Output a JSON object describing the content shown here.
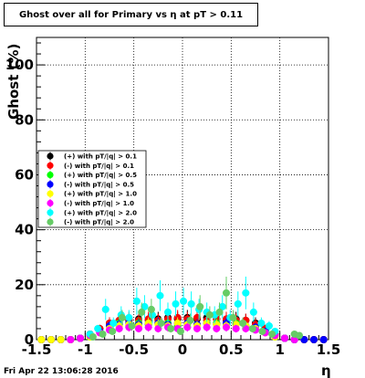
{
  "chart_data": {
    "type": "scatter",
    "title": "Ghost over all for Primary vs   η at pT > 0.11",
    "xlabel": "η",
    "ylabel": "Ghost (%)",
    "xlim": [
      -1.5,
      1.5
    ],
    "ylim": [
      0,
      110
    ],
    "x_ticks": [
      "-1.5",
      "-1",
      "-0.5",
      "0",
      "0.5",
      "1",
      "1.5"
    ],
    "x_tick_values": [
      -1.5,
      -1,
      -0.5,
      0,
      0.5,
      1,
      1.5
    ],
    "y_ticks": [
      "0",
      "20",
      "40",
      "60",
      "80",
      "100"
    ],
    "y_tick_values": [
      0,
      20,
      40,
      60,
      80,
      100
    ],
    "grid": true,
    "legend_position": "left-middle",
    "series": [
      {
        "name": "(+) with pT/|q| > 0.1",
        "color": "#000000",
        "x": [
          -1.45,
          -1.35,
          -1.25,
          -1.15,
          -1.05,
          -0.95,
          -0.85,
          -0.75,
          -0.65,
          -0.55,
          -0.45,
          -0.35,
          -0.25,
          -0.15,
          -0.05,
          0.05,
          0.15,
          0.25,
          0.35,
          0.45,
          0.55,
          0.65,
          0.75,
          0.85,
          0.95,
          1.05,
          1.15,
          1.25,
          1.35,
          1.45
        ],
        "y": [
          0,
          0,
          0,
          0,
          0.5,
          2,
          4,
          6,
          7,
          7,
          7.5,
          7,
          7.5,
          8,
          7.5,
          8,
          7.5,
          8,
          7.5,
          7,
          7.5,
          7,
          6,
          4,
          2,
          0.5,
          0,
          0,
          0,
          0
        ]
      },
      {
        "name": "(-) with pT/|q| > 0.1",
        "color": "#ff0000",
        "x": [
          -1.45,
          -1.35,
          -1.25,
          -1.15,
          -1.05,
          -0.95,
          -0.85,
          -0.75,
          -0.65,
          -0.55,
          -0.45,
          -0.35,
          -0.25,
          -0.15,
          -0.05,
          0.05,
          0.15,
          0.25,
          0.35,
          0.45,
          0.55,
          0.65,
          0.75,
          0.85,
          0.95,
          1.05,
          1.15,
          1.25,
          1.35,
          1.45
        ],
        "y": [
          0,
          0,
          0,
          0,
          0.5,
          2,
          4,
          6,
          7,
          7.5,
          7,
          7.5,
          7,
          7.5,
          8,
          7.5,
          8,
          7,
          7.5,
          7.5,
          7,
          7,
          5.5,
          4,
          2,
          0.5,
          0,
          0,
          0,
          0
        ]
      },
      {
        "name": "(+) with pT/|q| > 0.5",
        "color": "#00ff00",
        "x": [
          -0.95,
          -0.85,
          -0.75,
          -0.65,
          -0.55,
          -0.45,
          -0.35,
          -0.25,
          -0.15,
          -0.05,
          0.05,
          0.15,
          0.25,
          0.35,
          0.45,
          0.55,
          0.65,
          0.75,
          0.85,
          0.95
        ],
        "y": [
          1,
          3,
          5,
          6,
          5,
          6,
          5.5,
          6,
          6,
          5,
          6,
          5.5,
          6,
          6,
          5.5,
          6,
          5,
          4,
          3,
          1
        ]
      },
      {
        "name": "(-) with pT/|q| > 0.5",
        "color": "#0000ff",
        "x": [
          -1.45,
          -1.35,
          -1.25,
          -1.15,
          -1.05,
          -0.95,
          -0.85,
          -0.75,
          -0.65,
          -0.55,
          -0.45,
          -0.35,
          -0.25,
          -0.15,
          -0.05,
          0.05,
          0.15,
          0.25,
          0.35,
          0.45,
          0.55,
          0.65,
          0.75,
          0.85,
          0.95,
          1.05,
          1.15,
          1.25,
          1.35,
          1.45
        ],
        "y": [
          0,
          0,
          0,
          0,
          0.5,
          1.5,
          3,
          5,
          5.5,
          6,
          5.5,
          6,
          6,
          5.5,
          6,
          6,
          5.5,
          6,
          5.5,
          6,
          5.5,
          5,
          4.5,
          3,
          1.5,
          0.5,
          0,
          0,
          0,
          0
        ]
      },
      {
        "name": "(+) with pT/|q| > 1.0",
        "color": "#ffff00",
        "x": [
          -1.45,
          -1.35,
          -1.25,
          -1.15,
          -0.95,
          -0.85,
          -0.75,
          -0.65,
          -0.55,
          -0.45,
          -0.35,
          -0.25,
          -0.15,
          -0.05,
          0.05,
          0.15,
          0.25,
          0.35,
          0.45,
          0.55,
          0.65,
          0.75,
          0.85,
          0.95
        ],
        "y": [
          0,
          0,
          0,
          0,
          1,
          2.5,
          4,
          5,
          5.5,
          5,
          6,
          5.5,
          5,
          6,
          5.5,
          5,
          6,
          5.5,
          5,
          5.5,
          5,
          4,
          2.5,
          1
        ]
      },
      {
        "name": "(-) with pT/|q| > 1.0",
        "color": "#ff00ff",
        "x": [
          -1.15,
          -1.05,
          -0.95,
          -0.85,
          -0.75,
          -0.65,
          -0.55,
          -0.45,
          -0.35,
          -0.25,
          -0.15,
          -0.05,
          0.05,
          0.15,
          0.25,
          0.35,
          0.45,
          0.55,
          0.65,
          0.75,
          0.85,
          0.95,
          1.05,
          1.15
        ],
        "y": [
          0,
          0.5,
          1.5,
          2.5,
          3.5,
          4,
          4.5,
          4,
          4.5,
          4,
          4.5,
          4,
          4.5,
          4,
          4.5,
          4,
          4.5,
          4,
          4,
          3.5,
          2.5,
          1.5,
          0.5,
          0
        ]
      },
      {
        "name": "(+) with pT/|q| > 2.0",
        "color": "#00ffff",
        "x": [
          -0.95,
          -0.87,
          -0.79,
          -0.71,
          -0.63,
          -0.55,
          -0.47,
          -0.39,
          -0.31,
          -0.23,
          -0.15,
          -0.07,
          0.01,
          0.09,
          0.17,
          0.25,
          0.33,
          0.41,
          0.49,
          0.57,
          0.65,
          0.73,
          0.81,
          0.89,
          0.95
        ],
        "y": [
          2,
          4,
          11,
          6,
          9,
          8,
          14,
          12,
          9,
          16,
          10,
          13,
          14,
          13,
          11,
          10,
          9,
          12,
          8,
          13,
          17,
          10,
          6,
          5,
          3
        ]
      },
      {
        "name": "(-) with pT/|q| > 2.0",
        "color": "#66cc66",
        "x": [
          -0.92,
          -0.82,
          -0.72,
          -0.62,
          -0.52,
          -0.42,
          -0.32,
          -0.22,
          -0.12,
          -0.02,
          0.08,
          0.18,
          0.28,
          0.38,
          0.45,
          0.52,
          0.62,
          0.72,
          0.82,
          0.92,
          1.15,
          1.2
        ],
        "y": [
          1,
          2,
          3,
          8,
          5,
          10,
          11,
          6,
          4,
          3,
          7,
          12,
          9,
          10,
          17,
          8,
          6,
          4,
          3,
          2,
          2,
          1.5
        ]
      }
    ]
  },
  "footer": {
    "date": "Fri Apr 22 13:06:28 2016"
  }
}
